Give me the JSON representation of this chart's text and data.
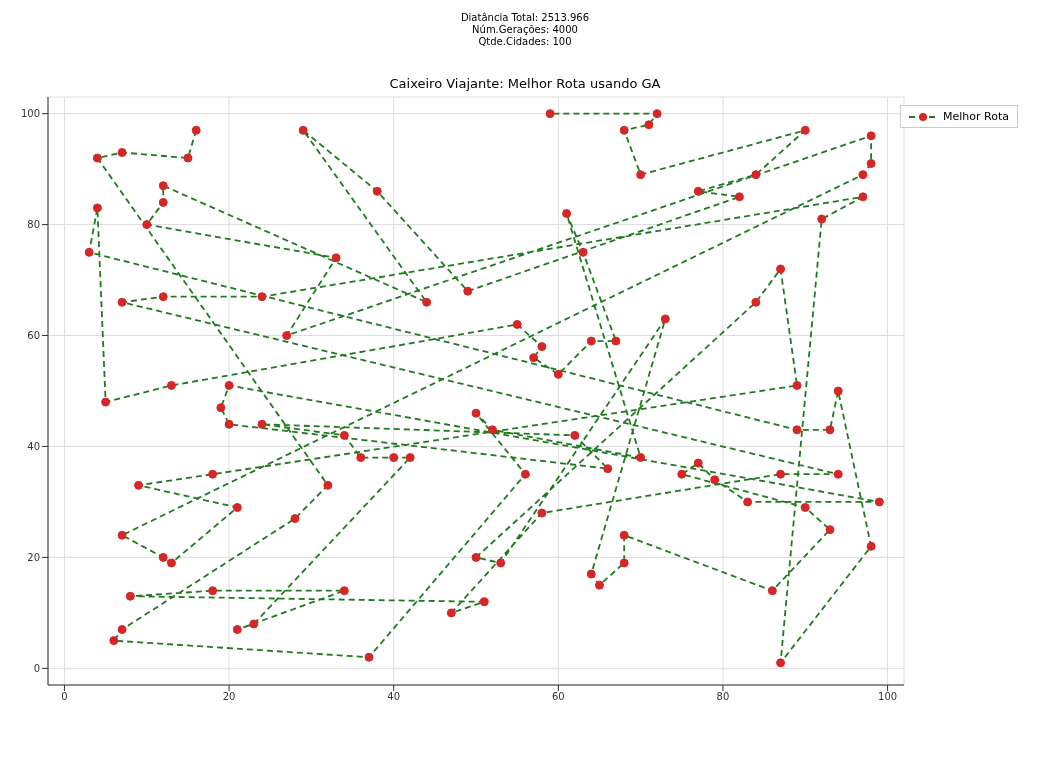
{
  "chart_data": {
    "type": "line",
    "title": "Caixeiro Viajante: Melhor Rota usando GA",
    "annotations": [
      "Diatância Total: 2513.966",
      "Núm.Gerações: 4000",
      "Qtde.Cidades: 100"
    ],
    "xlim": [
      -2,
      102
    ],
    "xticks": [
      0,
      20,
      40,
      60,
      80,
      100
    ],
    "ylim": [
      -3,
      103
    ],
    "yticks": [
      0,
      20,
      40,
      60,
      80,
      100
    ],
    "grid": true,
    "legend": "top right",
    "marker": "circle",
    "line_style": "dashed",
    "series": [
      {
        "name": "Melhor Rota",
        "color": "#1f7a1f",
        "colors": [
          "#d62728",
          "#d62728",
          "#d62728",
          "#d62728",
          "#d62728",
          "#d62728",
          "#d62728",
          "#d62728",
          "#d62728",
          "#d62728",
          "#d62728",
          "#d62728",
          "#d62728",
          "#d62728",
          "#d62728",
          "#d62728",
          "#d62728",
          "#d62728",
          "#d62728",
          "#d62728",
          "#d62728",
          "#d62728",
          "#d62728",
          "#d62728",
          "#d62728",
          "#d62728",
          "#d62728",
          "#d62728",
          "#d62728",
          "#d62728",
          "#d62728",
          "#d62728",
          "#d62728",
          "#d62728",
          "#d62728",
          "#d62728",
          "#d62728",
          "#d62728",
          "#d62728",
          "#d62728",
          "#d62728",
          "#d62728",
          "#d62728",
          "#d62728",
          "#d62728",
          "#d62728",
          "#d62728",
          "#d62728",
          "#d62728",
          "#d62728",
          "#d62728",
          "#d62728",
          "#d62728",
          "#d62728",
          "#d62728",
          "#d62728",
          "#d62728",
          "#d62728",
          "#d62728",
          "#d62728",
          "#d62728",
          "#d62728",
          "#d62728",
          "#d62728",
          "#d62728",
          "#d62728",
          "#d62728",
          "#d62728",
          "#d62728",
          "#d62728",
          "#d62728",
          "#d62728",
          "#d62728",
          "#d62728",
          "#d62728",
          "#d62728",
          "#d62728",
          "#d62728",
          "#d62728",
          "#d62728",
          "#d62728",
          "#d62728",
          "#d62728",
          "#d62728",
          "#d62728",
          "#d62728",
          "#d62728",
          "#d62728",
          "#d62728",
          "#d62728",
          "#d62728",
          "#d62728",
          "#d62728",
          "#d62728",
          "#d62728",
          "#d62728",
          "#d62728",
          "#d62728",
          "#d62728",
          "#d62728"
        ],
        "x": [
          16,
          15,
          7,
          4,
          32,
          28,
          7,
          6,
          37,
          56,
          50,
          52,
          70,
          61,
          63,
          67,
          64,
          60,
          57,
          58,
          55,
          13,
          5,
          4,
          3,
          89,
          93,
          94,
          98,
          87,
          92,
          97,
          24,
          12,
          7,
          94,
          87,
          58,
          47,
          51,
          8,
          18,
          34,
          21,
          23,
          42,
          40,
          36,
          34,
          24,
          62,
          66,
          20,
          19,
          20,
          99,
          83,
          79,
          77,
          75,
          90,
          93,
          86,
          68,
          68,
          65,
          64,
          73,
          53,
          50,
          84,
          87,
          89,
          18,
          9,
          21,
          13,
          12,
          7,
          97,
          98,
          98,
          27,
          33,
          10,
          12,
          12,
          44,
          29,
          38,
          49,
          82,
          77,
          84,
          90,
          70,
          68,
          71,
          72,
          59
        ],
        "values": [
          97,
          92,
          93,
          92,
          33,
          27,
          7,
          5,
          2,
          35,
          46,
          43,
          38,
          82,
          75,
          59,
          59,
          53,
          56,
          58,
          62,
          51,
          48,
          83,
          75,
          43,
          43,
          50,
          22,
          1,
          81,
          85,
          67,
          67,
          66,
          35,
          35,
          28,
          10,
          12,
          13,
          14,
          14,
          7,
          8,
          38,
          38,
          38,
          42,
          44,
          42,
          36,
          44,
          47,
          51,
          30,
          30,
          34,
          37,
          35,
          29,
          25,
          14,
          24,
          19,
          15,
          17,
          63,
          19,
          20,
          66,
          72,
          51,
          35,
          33,
          29,
          19,
          20,
          24,
          89,
          91,
          96,
          60,
          74,
          80,
          84,
          87,
          66,
          97,
          86,
          68,
          85,
          86,
          89,
          97,
          89,
          97,
          98,
          100,
          100
        ]
      }
    ]
  }
}
